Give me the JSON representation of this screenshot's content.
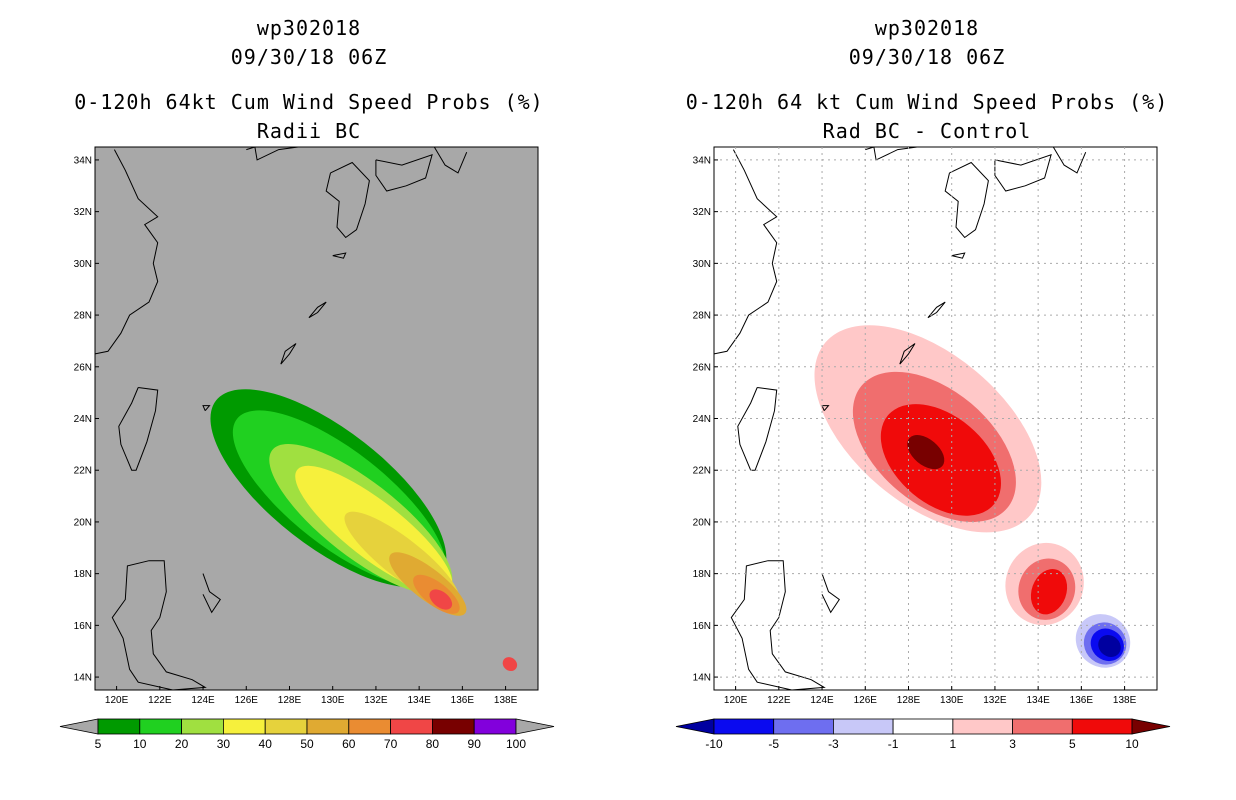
{
  "chart_data": [
    {
      "type": "heatmap",
      "title_lines": [
        "wp302018",
        "09/30/18 06Z",
        "0-120h 64kt Cum Wind Speed Probs (%)",
        "Radii BC"
      ],
      "lon_ticks": [
        "120E",
        "122E",
        "124E",
        "126E",
        "128E",
        "130E",
        "132E",
        "134E",
        "136E",
        "138E"
      ],
      "lat_ticks": [
        "34N",
        "32N",
        "30N",
        "28N",
        "26N",
        "24N",
        "22N",
        "20N",
        "18N",
        "16N",
        "14N"
      ],
      "xlim": [
        119,
        139.5
      ],
      "ylim": [
        13.5,
        34.5
      ],
      "grid": false,
      "background": "#a8a8a8",
      "colorbar": {
        "labels": [
          "5",
          "10",
          "20",
          "30",
          "40",
          "50",
          "60",
          "70",
          "80",
          "90",
          "100"
        ],
        "colors": [
          "#009a00",
          "#20d020",
          "#a0e040",
          "#f6f03c",
          "#e6d23c",
          "#e0aa32",
          "#ea8c32",
          "#f04646",
          "#780000",
          "#8200dc"
        ]
      },
      "contour_levels": [
        5,
        10,
        20,
        30,
        40,
        50,
        60,
        70,
        80
      ]
    },
    {
      "type": "heatmap",
      "title_lines": [
        "wp302018",
        "09/30/18 06Z",
        "0-120h 64 kt Cum Wind Speed Probs (%)",
        "Rad BC - Control"
      ],
      "lon_ticks": [
        "120E",
        "122E",
        "124E",
        "126E",
        "128E",
        "130E",
        "132E",
        "134E",
        "136E",
        "138E"
      ],
      "lat_ticks": [
        "34N",
        "32N",
        "30N",
        "28N",
        "26N",
        "24N",
        "22N",
        "20N",
        "18N",
        "16N",
        "14N"
      ],
      "xlim": [
        119,
        139.5
      ],
      "ylim": [
        13.5,
        34.5
      ],
      "grid": true,
      "background": "#ffffff",
      "colorbar": {
        "labels": [
          "-10",
          "-5",
          "-3",
          "-1",
          "1",
          "3",
          "5",
          "10"
        ],
        "colors": [
          "#0000a0",
          "#0a0af0",
          "#6e6ef0",
          "#c8c8f8",
          "#ffffff",
          "#ffc8c8",
          "#f06e6e",
          "#f00a0a",
          "#780000"
        ]
      },
      "contour_levels": [
        -10,
        -5,
        -3,
        1,
        3,
        5,
        10
      ]
    }
  ]
}
